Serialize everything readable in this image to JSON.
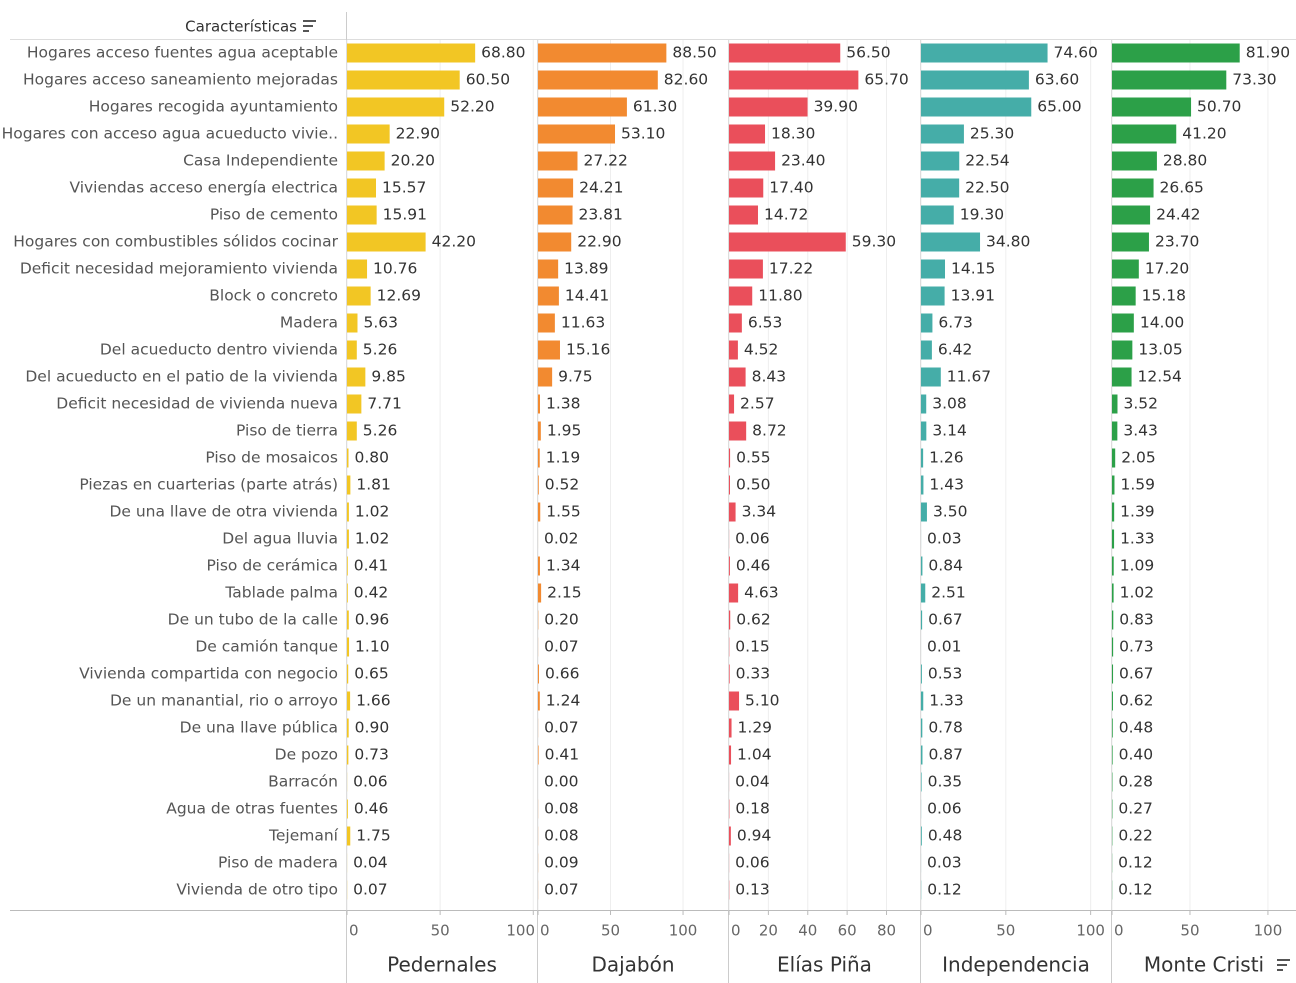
{
  "chart_data": {
    "type": "bar",
    "orientation": "horizontal",
    "row_header": "Características",
    "grid": true,
    "categories": [
      "Hogares acceso fuentes agua aceptable",
      "Hogares acceso saneamiento mejoradas",
      "Hogares recogida ayuntamiento",
      "Hogares con acceso agua acueducto vivie..",
      "Casa Independiente",
      "Viviendas acceso energía electrica",
      "Piso de cemento",
      "Hogares con combustibles sólidos cocinar",
      "Deficit necesidad mejoramiento vivienda",
      "Block o concreto",
      "Madera",
      "Del acueducto dentro vivienda",
      "Del acueducto en el patio de la vivienda",
      "Deficit necesidad de vivienda nueva",
      "Piso de tierra",
      "Piso de mosaicos",
      "Piezas en cuarterias (parte atrás)",
      "De una llave de otra vivienda",
      "Del agua lluvia",
      "Piso de cerámica",
      "Tablade palma",
      "De un tubo de la calle",
      "De camión tanque",
      "Vivienda compartida con negocio",
      "De un manantial, rio o arroyo",
      "De una llave pública",
      "De pozo",
      "Barracón",
      "Agua de otras fuentes",
      "Tejemaní",
      "Piso de madera",
      "Vivienda de otro tipo"
    ],
    "series": [
      {
        "name": "Pedernales",
        "color": "#f2c624",
        "xlim": [
          0,
          102
        ],
        "xticks": [
          0,
          50,
          100
        ],
        "values": [
          68.8,
          60.5,
          52.2,
          22.9,
          20.2,
          15.57,
          15.91,
          42.2,
          10.76,
          12.69,
          5.63,
          5.26,
          9.85,
          7.71,
          5.26,
          0.8,
          1.81,
          1.02,
          1.02,
          0.41,
          0.42,
          0.96,
          1.1,
          0.65,
          1.66,
          0.9,
          0.73,
          0.06,
          0.46,
          1.75,
          0.04,
          0.07
        ],
        "value_labels": [
          "68.80",
          "60.50",
          "52.20",
          "22.90",
          "20.20",
          "15.57",
          "15.91",
          "42.20",
          "10.76",
          "12.69",
          "5.63",
          "5.26",
          "9.85",
          "7.71",
          "5.26",
          "0.80",
          "1.81",
          "1.02",
          "1.02",
          "0.41",
          "0.42",
          "0.96",
          "1.10",
          "0.65",
          "1.66",
          "0.90",
          "0.73",
          "0.06",
          "0.46",
          "1.75",
          "0.04",
          "0.07"
        ]
      },
      {
        "name": "Dajabón",
        "color": "#f28a30",
        "xlim": [
          0,
          131
        ],
        "xticks": [
          0,
          50,
          100
        ],
        "values": [
          88.5,
          82.6,
          61.3,
          53.1,
          27.22,
          24.21,
          23.81,
          22.9,
          13.89,
          14.41,
          11.63,
          15.16,
          9.75,
          1.38,
          1.95,
          1.19,
          0.52,
          1.55,
          0.02,
          1.34,
          2.15,
          0.2,
          0.07,
          0.66,
          1.24,
          0.07,
          0.41,
          0,
          0.08,
          0.08,
          0.09,
          0.07
        ],
        "value_labels": [
          "88.50",
          "82.60",
          "61.30",
          "53.10",
          "27.22",
          "24.21",
          "23.81",
          "22.90",
          "13.89",
          "14.41",
          "11.63",
          "15.16",
          "9.75",
          "1.38",
          "1.95",
          "1.19",
          "0.52",
          "1.55",
          "0.02",
          "1.34",
          "2.15",
          "0.20",
          "0.07",
          "0.66",
          "1.24",
          "0.07",
          "0.41",
          "0.00",
          "0.08",
          "0.08",
          "0.09",
          "0.07"
        ]
      },
      {
        "name": "Elías Piña",
        "color": "#ea4f5b",
        "xlim": [
          0,
          97
        ],
        "xticks": [
          0,
          20,
          40,
          60,
          80
        ],
        "values": [
          56.5,
          65.7,
          39.9,
          18.3,
          23.4,
          17.4,
          14.72,
          59.3,
          17.22,
          11.8,
          6.53,
          4.52,
          8.43,
          2.57,
          8.72,
          0.55,
          0.5,
          3.34,
          0.06,
          0.46,
          4.63,
          0.62,
          0.15,
          0.33,
          5.1,
          1.29,
          1.04,
          0.04,
          0.18,
          0.94,
          0.06,
          0.13
        ],
        "value_labels": [
          "56.50",
          "65.70",
          "39.90",
          "18.30",
          "23.40",
          "17.40",
          "14.72",
          "59.30",
          "17.22",
          "11.80",
          "6.53",
          "4.52",
          "8.43",
          "2.57",
          "8.72",
          "0.55",
          "0.50",
          "3.34",
          "0.06",
          "0.46",
          "4.63",
          "0.62",
          "0.15",
          "0.33",
          "5.10",
          "1.29",
          "1.04",
          "0.04",
          "0.18",
          "0.94",
          "0.06",
          "0.13"
        ]
      },
      {
        "name": "Independencia",
        "color": "#45ada8",
        "xlim": [
          0,
          112
        ],
        "xticks": [
          0,
          50,
          100
        ],
        "values": [
          74.6,
          63.6,
          65,
          25.3,
          22.54,
          22.5,
          19.3,
          34.8,
          14.15,
          13.91,
          6.73,
          6.42,
          11.67,
          3.08,
          3.14,
          1.26,
          1.43,
          3.5,
          0.03,
          0.84,
          2.51,
          0.67,
          0.01,
          0.53,
          1.33,
          0.78,
          0.87,
          0.35,
          0.06,
          0.48,
          0.03,
          0.12
        ],
        "value_labels": [
          "74.60",
          "63.60",
          "65.00",
          "25.30",
          "22.54",
          "22.50",
          "19.30",
          "34.80",
          "14.15",
          "13.91",
          "6.73",
          "6.42",
          "11.67",
          "3.08",
          "3.14",
          "1.26",
          "1.43",
          "3.50",
          "0.03",
          "0.84",
          "2.51",
          "0.67",
          "0.01",
          "0.53",
          "1.33",
          "0.78",
          "0.87",
          "0.35",
          "0.06",
          "0.48",
          "0.03",
          "0.12"
        ]
      },
      {
        "name": "Monte Cristi",
        "color": "#2ca048",
        "xlim": [
          0,
          118
        ],
        "xticks": [
          0,
          50,
          100
        ],
        "values": [
          81.9,
          73.3,
          50.7,
          41.2,
          28.8,
          26.65,
          24.42,
          23.7,
          17.2,
          15.18,
          14,
          13.05,
          12.54,
          3.52,
          3.43,
          2.05,
          1.59,
          1.39,
          1.33,
          1.09,
          1.02,
          0.83,
          0.73,
          0.67,
          0.62,
          0.48,
          0.4,
          0.28,
          0.27,
          0.22,
          0.12,
          0.12
        ],
        "value_labels": [
          "81.90",
          "73.30",
          "50.70",
          "41.20",
          "28.80",
          "26.65",
          "24.42",
          "23.70",
          "17.20",
          "15.18",
          "14.00",
          "13.05",
          "12.54",
          "3.52",
          "3.43",
          "2.05",
          "1.59",
          "1.39",
          "1.33",
          "1.09",
          "1.02",
          "0.83",
          "0.73",
          "0.67",
          "0.62",
          "0.48",
          "0.40",
          "0.28",
          "0.27",
          "0.22",
          "0.12",
          "0.12"
        ]
      }
    ]
  }
}
